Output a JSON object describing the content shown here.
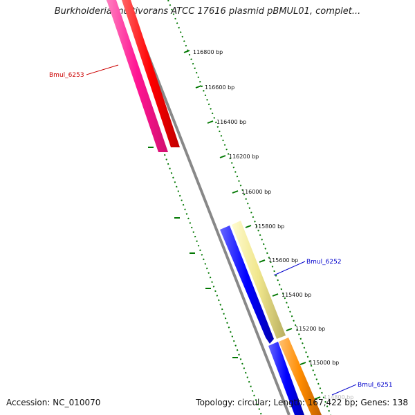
{
  "title": "Burkholderia multivorans ATCC 17616 plasmid pBMUL01, complet...",
  "footer": {
    "accession": "Accession: NC_010070",
    "summary": "Topology: circular; Length: 167,422 bp; Genes: 138"
  },
  "ruler": [
    {
      "label": "116800 bp"
    },
    {
      "label": "116600 bp"
    },
    {
      "label": "116400 bp"
    },
    {
      "label": "116200 bp"
    },
    {
      "label": "116000 bp"
    },
    {
      "label": "115800 bp"
    },
    {
      "label": "115600 bp"
    },
    {
      "label": "115400 bp"
    },
    {
      "label": "115200 bp"
    },
    {
      "label": "115000 bp"
    },
    {
      "label": "114800 bp"
    }
  ],
  "genes": [
    {
      "name": "Bmul_6253",
      "color": "#cc0000"
    },
    {
      "name": "Bmul_6252",
      "color": "#0000cc"
    },
    {
      "name": "Bmul_6251",
      "color": "#0000cc"
    }
  ],
  "colors": {
    "pink": "#ff3399",
    "red": "#ff0000",
    "gray": "#808080",
    "blue": "#0000ff",
    "khaki": "#eee8aa",
    "orange": "#ff8c00",
    "tick": "#007700"
  }
}
